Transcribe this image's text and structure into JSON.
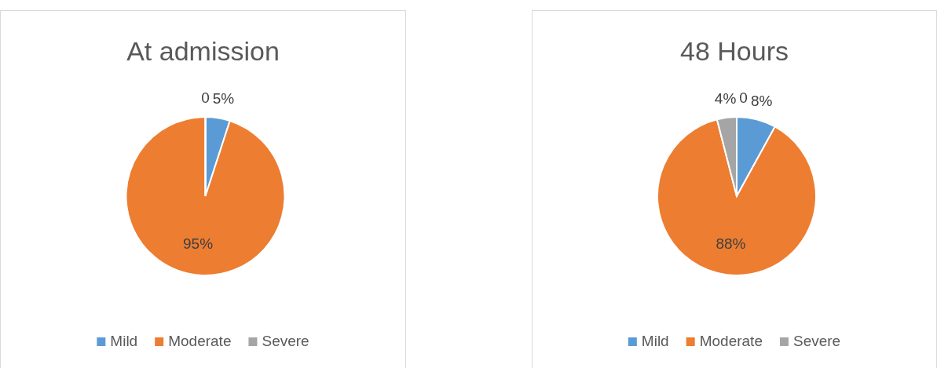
{
  "chart_data": [
    {
      "type": "pie",
      "title": "At admission",
      "categories": [
        "Mild",
        "Moderate",
        "Severe",
        null
      ],
      "values": [
        5,
        95,
        0,
        0
      ],
      "colors": [
        "#5b9bd5",
        "#ed7d31",
        "#a5a5a5",
        "#ffc000"
      ],
      "value_labels": [
        "5%",
        "95%",
        null,
        "0"
      ],
      "legend": "bottom"
    },
    {
      "type": "pie",
      "title": "48 Hours",
      "categories": [
        "Mild",
        "Moderate",
        "Severe",
        null
      ],
      "values": [
        8,
        88,
        4,
        0
      ],
      "colors": [
        "#5b9bd5",
        "#ed7d31",
        "#a5a5a5",
        "#ffc000"
      ],
      "value_labels": [
        "8%",
        "88%",
        "4%",
        "0"
      ],
      "legend": "bottom"
    }
  ]
}
